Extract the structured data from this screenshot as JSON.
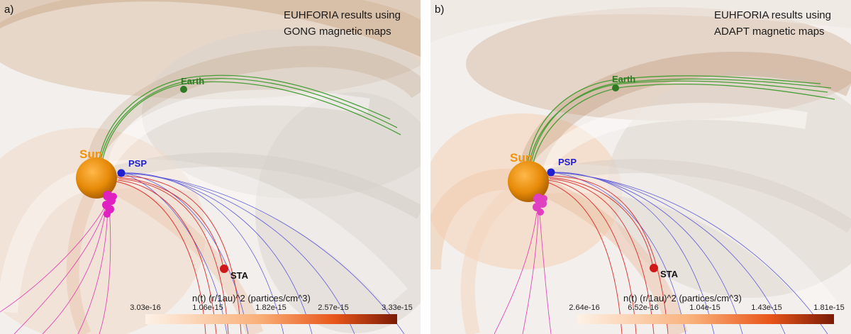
{
  "panels": [
    {
      "letter": "a)",
      "title_line1": "EUHFORIA results using",
      "title_line2": "GONG magnetic maps",
      "labels": {
        "sun": "Sun",
        "earth": "Earth",
        "psp": "PSP",
        "sta": "STA"
      },
      "colorbar": {
        "title": "n(t) (r/1au)^2 (partices/cm^3)",
        "ticks": [
          "3.03e-16",
          "1.06e-15",
          "1.82e-15",
          "2.57e-15",
          "3.33e-15"
        ],
        "range": [
          3.03e-16,
          3.33e-15
        ]
      }
    },
    {
      "letter": "b)",
      "title_line1": "EUHFORIA results using",
      "title_line2": "ADAPT magnetic maps",
      "labels": {
        "sun": "Sun",
        "earth": "Earth",
        "psp": "PSP",
        "sta": "STA"
      },
      "colorbar": {
        "title": "n(t) (r/1au)^2 (partices/cm^3)",
        "ticks": [
          "2.64e-16",
          "6.52e-16",
          "1.04e-15",
          "1.43e-15",
          "1.81e-15"
        ],
        "range": [
          2.64e-16,
          1.81e-15
        ]
      }
    }
  ],
  "colors": {
    "sun": "#f0920a",
    "earth_line": "#3a9a2a",
    "earth_dot": "#2f7a22",
    "psp": "#2020d0",
    "sta": "#d01818",
    "magenta": "#e020b0",
    "colorbar_low": "#fde9d8",
    "colorbar_mid": "#f47f2e",
    "colorbar_high": "#7a1a05"
  }
}
